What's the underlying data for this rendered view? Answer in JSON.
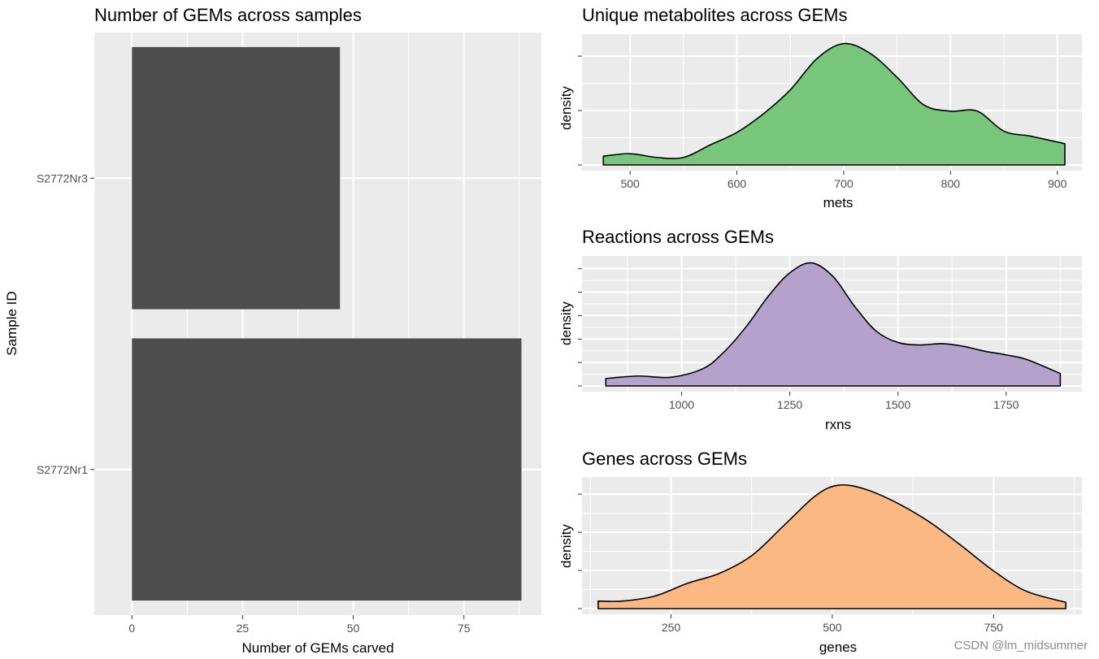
{
  "chart_data": [
    {
      "type": "bar",
      "orientation": "horizontal",
      "title": "Number of GEMs across samples",
      "xlabel": "Number of GEMs carved",
      "ylabel": "Sample ID",
      "categories": [
        "S2772Nr3",
        "S2772Nr1"
      ],
      "values": [
        47,
        88
      ],
      "xlim": [
        -8.5,
        92.5
      ],
      "xticks": [
        0,
        25,
        50,
        75
      ],
      "bar_color": "#4d4d4d",
      "grid": true
    },
    {
      "type": "area",
      "title": "Unique metabolites across GEMs",
      "xlabel": "mets",
      "ylabel": "density",
      "xlim": [
        455,
        923
      ],
      "xticks": [
        500,
        600,
        700,
        800,
        900
      ],
      "fill_color": "#77c67b",
      "grid": true,
      "x": [
        475,
        500,
        525,
        550,
        575,
        600,
        625,
        650,
        675,
        700,
        725,
        750,
        775,
        800,
        825,
        850,
        875,
        907
      ],
      "y": [
        0.07,
        0.09,
        0.06,
        0.06,
        0.16,
        0.26,
        0.41,
        0.6,
        0.85,
        0.97,
        0.89,
        0.7,
        0.48,
        0.43,
        0.43,
        0.27,
        0.23,
        0.17
      ]
    },
    {
      "type": "area",
      "title": "Reactions across GEMs",
      "xlabel": "rxns",
      "ylabel": "density",
      "xlim": [
        770,
        1925
      ],
      "xticks": [
        1000,
        1250,
        1500,
        1750
      ],
      "fill_color": "#b5a2cc",
      "grid": true,
      "x": [
        825,
        900,
        975,
        1050,
        1100,
        1150,
        1200,
        1250,
        1300,
        1350,
        1400,
        1450,
        1500,
        1550,
        1600,
        1650,
        1700,
        1750,
        1800,
        1875
      ],
      "y": [
        0.06,
        0.08,
        0.07,
        0.14,
        0.28,
        0.48,
        0.72,
        0.91,
        0.99,
        0.88,
        0.64,
        0.44,
        0.35,
        0.33,
        0.34,
        0.32,
        0.28,
        0.25,
        0.21,
        0.1
      ]
    },
    {
      "type": "area",
      "title": "Genes across GEMs",
      "xlabel": "genes",
      "ylabel": "density",
      "xlim": [
        112,
        887
      ],
      "xticks": [
        250,
        500,
        750
      ],
      "fill_color": "#fbb882",
      "grid": true,
      "x": [
        137,
        175,
        225,
        275,
        325,
        375,
        425,
        475,
        510,
        550,
        600,
        650,
        700,
        750,
        800,
        862
      ],
      "y": [
        0.06,
        0.06,
        0.1,
        0.2,
        0.28,
        0.42,
        0.66,
        0.9,
        0.98,
        0.95,
        0.84,
        0.69,
        0.5,
        0.3,
        0.14,
        0.05
      ]
    }
  ],
  "watermark": "CSDN @lm_midsummer",
  "colors": {
    "panel_bg": "#ebebeb",
    "grid_major": "#ffffff",
    "outline": "#000000"
  }
}
